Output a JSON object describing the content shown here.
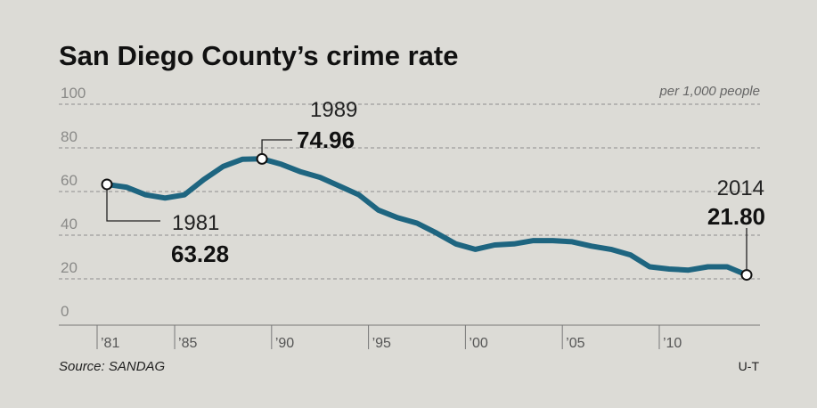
{
  "title": "San Diego County’s crime rate",
  "unit_label": "per 1,000 people",
  "source": "Source: SANDAG",
  "credit": "U-T",
  "colors": {
    "line": "#1e6580",
    "background": "#dcdbd6",
    "grid": "#8e8e8e"
  },
  "chart_data": {
    "type": "line",
    "title": "San Diego County’s crime rate",
    "ylabel": "per 1,000 people",
    "ylim": [
      0,
      100
    ],
    "yticks": [
      0,
      20,
      40,
      60,
      80,
      100
    ],
    "xlim": [
      1980,
      2015
    ],
    "xticks": [
      {
        "value": 1981,
        "label": "'81"
      },
      {
        "value": 1985,
        "label": "'85"
      },
      {
        "value": 1990,
        "label": "'90"
      },
      {
        "value": 1995,
        "label": "'95"
      },
      {
        "value": 2000,
        "label": "'00"
      },
      {
        "value": 2005,
        "label": "'05"
      },
      {
        "value": 2010,
        "label": "'10"
      }
    ],
    "grid": true,
    "legend": "none",
    "series": [
      {
        "x": [
          1981,
          1982,
          1983,
          1984,
          1985,
          1986,
          1987,
          1988,
          1989,
          1990,
          1991,
          1992,
          1993,
          1994,
          1995,
          1996,
          1997,
          1998,
          1999,
          2000,
          2001,
          2002,
          2003,
          2004,
          2005,
          2006,
          2007,
          2008,
          2009,
          2010,
          2011,
          2012,
          2013,
          2014
        ],
        "values": [
          63.28,
          62.0,
          58.5,
          57.0,
          58.5,
          65.5,
          71.5,
          74.8,
          74.96,
          72.5,
          69.0,
          66.5,
          62.5,
          58.5,
          51.5,
          48.0,
          45.5,
          41.0,
          36.0,
          33.5,
          35.5,
          36.0,
          37.5,
          37.5,
          37.0,
          35.0,
          33.5,
          31.0,
          25.5,
          24.5,
          24.0,
          25.5,
          25.5,
          21.8
        ]
      }
    ],
    "annotations": [
      {
        "year": "1981",
        "value": "63.28",
        "x": 1981,
        "y": 63.28
      },
      {
        "year": "1989",
        "value": "74.96",
        "x": 1989,
        "y": 74.96
      },
      {
        "year": "2014",
        "value": "21.80",
        "x": 2014,
        "y": 21.8
      }
    ]
  }
}
